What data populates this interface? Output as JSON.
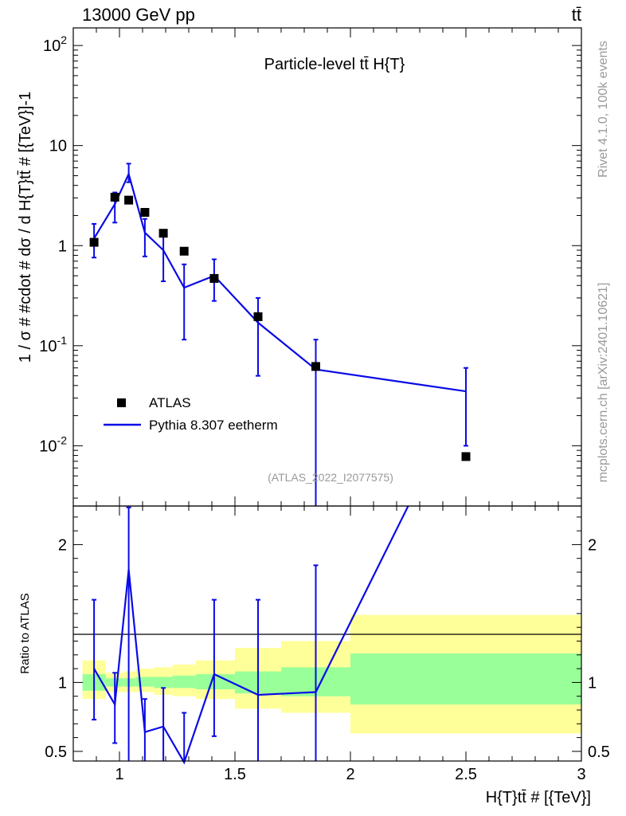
{
  "header": {
    "left": "13000 GeV pp",
    "right": "tt̄"
  },
  "side_labels": {
    "rivet": "Rivet 4.1.0,  100k events",
    "mcplots": "mcplots.cern.ch [arXiv:2401.10621]"
  },
  "colors": {
    "data": "#000000",
    "mc": "#0a0ae6",
    "band_inner": "#99ff99",
    "band_outer": "#ffff99",
    "watermark": "#999999"
  },
  "chart_data": [
    {
      "type": "scatter",
      "panel": "main",
      "title": "Particle-level tt̄  H{T}",
      "ylabel": "1 / σ # #cdot # dσ / d H{T}tt̄ # [{TeV}]-1",
      "yscale": "log",
      "xlim": [
        0.8,
        3.0
      ],
      "ylim": [
        0.0025,
        150
      ],
      "ytick_values": [
        0.01,
        0.1,
        1,
        10,
        100
      ],
      "ytick_labels": [
        {
          "base": "10",
          "exp": "-2"
        },
        {
          "base": "10",
          "exp": "-1"
        },
        {
          "base": "1",
          "exp": ""
        },
        {
          "base": "10",
          "exp": ""
        },
        {
          "base": "10",
          "exp": "2"
        }
      ],
      "watermark": "(ATLAS_2022_I2077575)",
      "legend": {
        "position": "lower-left",
        "entries": [
          "ATLAS",
          "Pythia 8.307 eetherm"
        ]
      },
      "series": [
        {
          "name": "ATLAS",
          "x": [
            0.89,
            0.98,
            1.04,
            1.11,
            1.19,
            1.28,
            1.41,
            1.6,
            1.85,
            2.5
          ],
          "y": [
            1.08,
            3.05,
            2.85,
            2.15,
            1.33,
            0.88,
            0.47,
            0.195,
            0.062,
            0.0078
          ]
        },
        {
          "name": "Pythia 8.307 eetherm",
          "x": [
            0.89,
            0.98,
            1.04,
            1.11,
            1.19,
            1.28,
            1.41,
            1.6,
            1.85,
            2.5
          ],
          "y": [
            1.18,
            2.6,
            5.2,
            1.35,
            0.9,
            0.38,
            0.5,
            0.17,
            0.058,
            0.035
          ],
          "err_low": [
            0.76,
            1.7,
            4.3,
            0.78,
            0.44,
            0.115,
            0.28,
            0.05,
            0.0015,
            0.01
          ],
          "err_high": [
            1.65,
            3.4,
            6.6,
            1.85,
            1.3,
            0.65,
            0.73,
            0.3,
            0.115,
            0.06
          ]
        }
      ]
    },
    {
      "type": "line",
      "panel": "ratio",
      "ylabel": "Ratio to ATLAS",
      "xlabel": "H{T}tt̄ # [{TeV}]",
      "xlim": [
        0.8,
        3.0
      ],
      "ylim": [
        0.43,
        2.28
      ],
      "xticks": [
        1,
        1.5,
        2,
        2.5,
        3
      ],
      "xtick_labels": [
        "1",
        "1.5",
        "2",
        "2.5",
        "3"
      ],
      "yticks": [
        0.5,
        1,
        2
      ],
      "ytick_labels": [
        "0.5",
        "1",
        "2"
      ],
      "bands": {
        "edges": [
          0.84,
          0.94,
          1.02,
          1.07,
          1.15,
          1.23,
          1.33,
          1.5,
          1.7,
          2.0,
          3.0
        ],
        "inner_low": [
          0.94,
          0.97,
          0.97,
          0.97,
          0.96,
          0.96,
          0.95,
          0.92,
          0.9,
          0.84
        ],
        "inner_high": [
          1.06,
          1.03,
          1.03,
          1.04,
          1.04,
          1.05,
          1.06,
          1.08,
          1.11,
          1.21
        ],
        "outer_low": [
          0.88,
          0.93,
          0.93,
          0.93,
          0.91,
          0.9,
          0.88,
          0.81,
          0.78,
          0.63
        ],
        "outer_high": [
          1.16,
          1.07,
          1.08,
          1.1,
          1.11,
          1.13,
          1.16,
          1.25,
          1.3,
          1.49
        ]
      },
      "series": [
        {
          "name": "Pythia 8.307 eetherm",
          "x": [
            0.89,
            0.98,
            1.04,
            1.11,
            1.19,
            1.28,
            1.41,
            1.6,
            1.85,
            2.25
          ],
          "y": [
            1.1,
            0.84,
            1.82,
            0.64,
            0.68,
            0.42,
            1.06,
            0.91,
            0.93,
            2.28
          ],
          "err_low": [
            0.73,
            0.56,
            0.43,
            0.43,
            0.43,
            0.43,
            0.61,
            0.43,
            0.43,
            null
          ],
          "err_high": [
            1.6,
            1.07,
            2.27,
            0.88,
            0.96,
            0.78,
            1.6,
            1.6,
            1.85,
            null
          ]
        }
      ]
    }
  ]
}
